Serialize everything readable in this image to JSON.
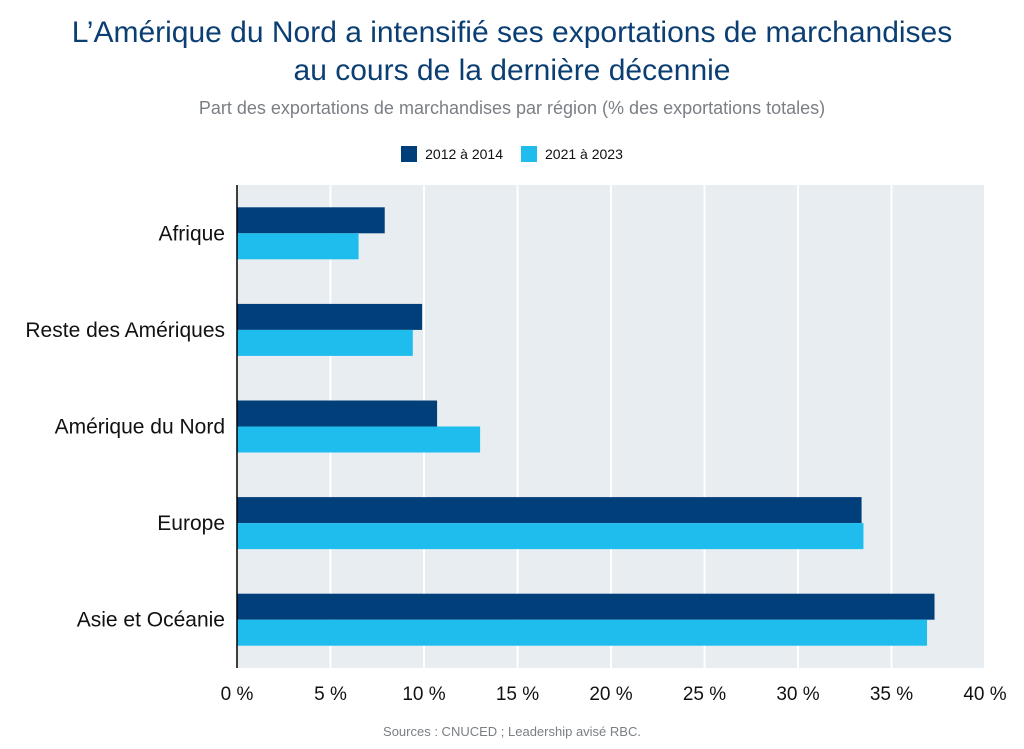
{
  "title_line1": "L’Amérique du Nord a intensifié ses exportations de marchandises",
  "title_line2": "au cours de la dernière décennie",
  "subtitle": "Part des exportations de marchandises par région (% des exportations totales)",
  "source": "Sources : CNUCED ; Leadership avisé RBC.",
  "colors": {
    "series1": "#003f7a",
    "series2": "#1fbcee",
    "plot_bg": "#e7edf0",
    "grid": "#ffffff"
  },
  "chart_data": {
    "type": "bar",
    "orientation": "horizontal",
    "title": "L’Amérique du Nord a intensifié ses exportations de marchandises au cours de la dernière décennie",
    "subtitle": "Part des exportations de marchandises par région (% des exportations totales)",
    "categories": [
      "Afrique",
      "Reste des Amériques",
      "Amérique du Nord",
      "Europe",
      "Asie et Océanie"
    ],
    "series": [
      {
        "name": "2012 à 2014",
        "values": [
          7.9,
          9.9,
          10.7,
          33.4,
          37.3
        ]
      },
      {
        "name": "2021 à 2023",
        "values": [
          6.5,
          9.4,
          13.0,
          33.5,
          36.9
        ]
      }
    ],
    "xlim": [
      0,
      40
    ],
    "xticks": [
      0,
      5,
      10,
      15,
      20,
      25,
      30,
      35,
      40
    ],
    "xtick_labels": [
      "0 %",
      "5 %",
      "10 %",
      "15 %",
      "20 %",
      "25 %",
      "30 %",
      "35 %",
      "40 %"
    ],
    "xlabel": "",
    "ylabel": "",
    "grid": true,
    "legend_position": "top-center"
  }
}
